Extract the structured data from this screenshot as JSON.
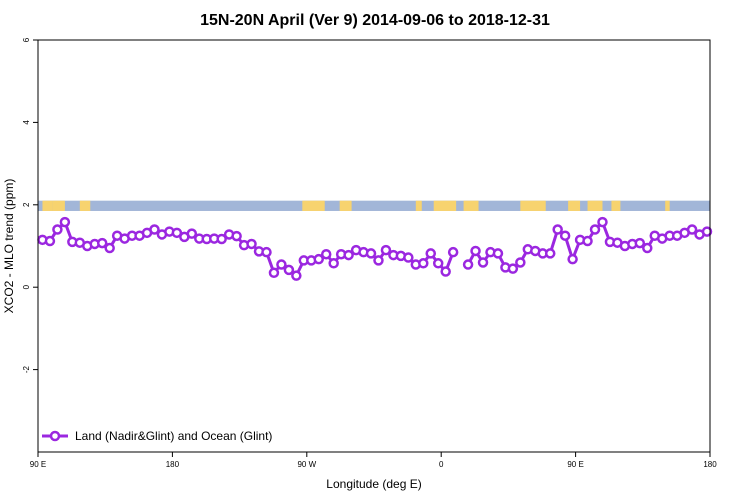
{
  "chart_data": {
    "type": "line",
    "title": "15N-20N April (Ver 9)   2014-09-06 to 2018-12-31",
    "xlabel": "Longitude (deg E)",
    "ylabel": "XCO2 - MLO trend (ppm)",
    "xlim": [
      90,
      540
    ],
    "ylim": [
      -4,
      6
    ],
    "x_ticks": [
      {
        "value": 90,
        "label": "90 E"
      },
      {
        "value": 180,
        "label": "180"
      },
      {
        "value": 270,
        "label": "90 W"
      },
      {
        "value": 360,
        "label": "0"
      },
      {
        "value": 450,
        "label": "90 E"
      },
      {
        "value": 540,
        "label": "180"
      }
    ],
    "y_ticks": [
      {
        "value": -2,
        "label": "-2"
      },
      {
        "value": 0,
        "label": "0"
      },
      {
        "value": 2,
        "label": "2"
      },
      {
        "value": 4,
        "label": "4"
      },
      {
        "value": 6,
        "label": "6"
      }
    ],
    "legend_position": "bottom-left",
    "series": [
      {
        "name": "Land (Nadir&Glint) and Ocean (Glint)",
        "color": "#9b27e0",
        "segments": [
          {
            "x": [
              93,
              98,
              103,
              108,
              113,
              118,
              123,
              128,
              133,
              138,
              143,
              148,
              153,
              158,
              163,
              168,
              173,
              178,
              183,
              188,
              193,
              198,
              203,
              208,
              213,
              218,
              223,
              228,
              233,
              238,
              243,
              248,
              253,
              258,
              263,
              268,
              273,
              278,
              283,
              288,
              293,
              298,
              303,
              308,
              313,
              318,
              323,
              328,
              333,
              338,
              343,
              348,
              353,
              358,
              363,
              368
            ],
            "y": [
              1.15,
              1.12,
              1.4,
              1.58,
              1.1,
              1.08,
              1.0,
              1.05,
              1.07,
              0.95,
              1.25,
              1.18,
              1.25,
              1.25,
              1.32,
              1.4,
              1.28,
              1.35,
              1.32,
              1.22,
              1.3,
              1.18,
              1.17,
              1.18,
              1.17,
              1.28,
              1.24,
              1.02,
              1.05,
              0.87,
              0.85,
              0.35,
              0.55,
              0.42,
              0.28,
              0.65,
              0.65,
              0.68,
              0.8,
              0.58,
              0.8,
              0.78,
              0.9,
              0.85,
              0.82,
              0.65,
              0.9,
              0.78,
              0.76,
              0.72,
              0.55,
              0.58,
              0.82,
              0.58,
              0.38,
              0.85
            ]
          },
          {
            "x": [
              378,
              383,
              388,
              393,
              398,
              403,
              408,
              413,
              418,
              423,
              428,
              433,
              438,
              443,
              448,
              453,
              458,
              463,
              468,
              473,
              478,
              483,
              488,
              493,
              498,
              503,
              508,
              513,
              518,
              523,
              528,
              533,
              538
            ],
            "y": [
              0.55,
              0.88,
              0.6,
              0.85,
              0.82,
              0.48,
              0.45,
              0.6,
              0.92,
              0.88,
              0.82,
              0.82,
              1.4,
              1.25,
              0.68,
              1.15,
              1.12,
              1.4,
              1.58,
              1.1,
              1.08,
              1.0,
              1.05,
              1.07,
              0.95,
              1.25,
              1.18,
              1.25,
              1.25,
              1.32,
              1.4,
              1.28,
              1.35
            ]
          }
        ]
      }
    ],
    "map_strip": {
      "y_range": [
        1.85,
        2.1
      ],
      "ocean_color": "#a2b6d8",
      "land_color": "#f7d36f",
      "land_x_ranges": [
        [
          93,
          100
        ],
        [
          100,
          108
        ],
        [
          118,
          125
        ],
        [
          267,
          282
        ],
        [
          292,
          300
        ],
        [
          343,
          347
        ],
        [
          355,
          370
        ],
        [
          375,
          385
        ],
        [
          413,
          430
        ],
        [
          445,
          453
        ],
        [
          458,
          468
        ],
        [
          474,
          480
        ],
        [
          510,
          513
        ]
      ]
    }
  }
}
